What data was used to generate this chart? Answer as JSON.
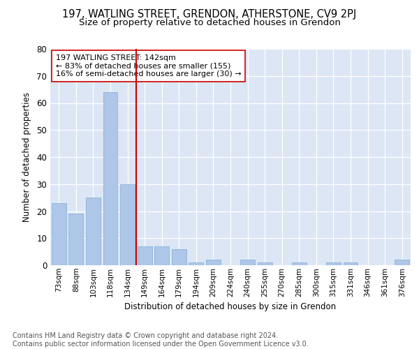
{
  "title1": "197, WATLING STREET, GRENDON, ATHERSTONE, CV9 2PJ",
  "title2": "Size of property relative to detached houses in Grendon",
  "xlabel": "Distribution of detached houses by size in Grendon",
  "ylabel": "Number of detached properties",
  "footer1": "Contains HM Land Registry data © Crown copyright and database right 2024.",
  "footer2": "Contains public sector information licensed under the Open Government Licence v3.0.",
  "annotation_line1": "197 WATLING STREET: 142sqm",
  "annotation_line2": "← 83% of detached houses are smaller (155)",
  "annotation_line3": "16% of semi-detached houses are larger (30) →",
  "bar_labels": [
    "73sqm",
    "88sqm",
    "103sqm",
    "118sqm",
    "134sqm",
    "149sqm",
    "164sqm",
    "179sqm",
    "194sqm",
    "209sqm",
    "224sqm",
    "240sqm",
    "255sqm",
    "270sqm",
    "285sqm",
    "300sqm",
    "315sqm",
    "331sqm",
    "346sqm",
    "361sqm",
    "376sqm"
  ],
  "bar_values": [
    23,
    19,
    25,
    64,
    30,
    7,
    7,
    6,
    1,
    2,
    0,
    2,
    1,
    0,
    1,
    0,
    1,
    1,
    0,
    0,
    2
  ],
  "bar_color": "#aec6e8",
  "bar_edge_color": "#8ab4d8",
  "vline_x_index": 4.5,
  "vline_color": "#cc0000",
  "ylim": [
    0,
    80
  ],
  "yticks": [
    0,
    10,
    20,
    30,
    40,
    50,
    60,
    70,
    80
  ],
  "plot_bg_color": "#dce6f5",
  "title1_fontsize": 10.5,
  "title2_fontsize": 9.5,
  "footer_fontsize": 7,
  "annotation_fontsize": 8,
  "ylabel_fontsize": 8.5,
  "xlabel_fontsize": 8.5,
  "tick_fontsize": 7.5,
  "ytick_fontsize": 8.5
}
